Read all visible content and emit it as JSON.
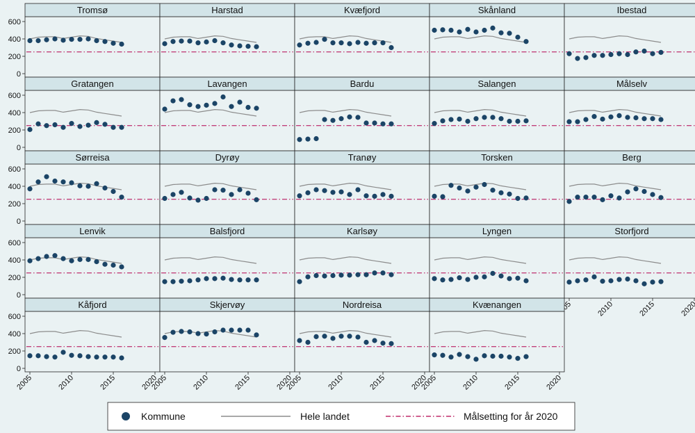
{
  "chart_data": {
    "type": "scatter",
    "layout": "small-multiples",
    "xlim": [
      2005,
      2020
    ],
    "ylim": [
      0,
      600
    ],
    "x_ticks": [
      2005,
      2010,
      2015,
      2020
    ],
    "y_ticks": [
      0,
      200,
      400,
      600
    ],
    "x": [
      2005,
      2006,
      2007,
      2008,
      2009,
      2010,
      2011,
      2012,
      2013,
      2014,
      2015,
      2016
    ],
    "national": [
      400,
      420,
      425,
      425,
      405,
      420,
      435,
      430,
      405,
      390,
      375,
      360
    ],
    "target_2020": 250,
    "legend": {
      "kommune": "Kommune",
      "national": "Hele landet",
      "target": "Målsetting for år 2020"
    },
    "colors": {
      "dot": "#1b4466",
      "national": "#8c8c8c",
      "target": "#b3004e",
      "panel_title_bg": "#d2e4e8",
      "background": "#eaf2f3"
    },
    "panels": [
      {
        "name": "Tromsø",
        "values": [
          380,
          380,
          390,
          400,
          385,
          395,
          395,
          400,
          380,
          370,
          350,
          340
        ]
      },
      {
        "name": "Harstad",
        "values": [
          345,
          370,
          375,
          375,
          355,
          365,
          380,
          355,
          330,
          320,
          315,
          310
        ]
      },
      {
        "name": "Kvæfjord",
        "values": [
          330,
          350,
          360,
          395,
          355,
          355,
          345,
          360,
          350,
          355,
          355,
          300
        ]
      },
      {
        "name": "Skånland",
        "values": [
          500,
          505,
          500,
          480,
          510,
          480,
          500,
          525,
          470,
          465,
          420,
          370
        ]
      },
      {
        "name": "Ibestad",
        "values": [
          230,
          175,
          185,
          210,
          210,
          220,
          230,
          220,
          250,
          260,
          230,
          245
        ]
      },
      {
        "name": "Gratangen",
        "values": [
          205,
          270,
          250,
          260,
          230,
          275,
          240,
          255,
          285,
          265,
          230,
          230
        ]
      },
      {
        "name": "Lavangen",
        "values": [
          440,
          535,
          550,
          490,
          470,
          485,
          505,
          580,
          470,
          520,
          460,
          450
        ]
      },
      {
        "name": "Bardu",
        "values": [
          90,
          95,
          100,
          320,
          310,
          330,
          350,
          345,
          280,
          280,
          270,
          270
        ]
      },
      {
        "name": "Salangen",
        "values": [
          275,
          305,
          320,
          325,
          300,
          330,
          345,
          345,
          330,
          300,
          300,
          305
        ]
      },
      {
        "name": "Målselv",
        "values": [
          295,
          295,
          320,
          355,
          325,
          350,
          365,
          345,
          340,
          330,
          330,
          320
        ]
      },
      {
        "name": "Sørreisa",
        "values": [
          370,
          450,
          510,
          460,
          450,
          440,
          405,
          400,
          430,
          380,
          340,
          275
        ]
      },
      {
        "name": "Dyrøy",
        "values": [
          260,
          305,
          330,
          265,
          240,
          260,
          360,
          355,
          305,
          360,
          320,
          245
        ]
      },
      {
        "name": "Tranøy",
        "values": [
          290,
          325,
          360,
          350,
          330,
          335,
          305,
          360,
          290,
          285,
          305,
          285
        ]
      },
      {
        "name": "Torsken",
        "values": [
          285,
          280,
          410,
          380,
          345,
          390,
          420,
          355,
          325,
          310,
          260,
          265
        ]
      },
      {
        "name": "Berg",
        "values": [
          225,
          275,
          275,
          275,
          245,
          290,
          265,
          335,
          370,
          340,
          305,
          270
        ]
      },
      {
        "name": "Lenvik",
        "values": [
          390,
          415,
          440,
          450,
          415,
          390,
          405,
          405,
          380,
          350,
          340,
          320
        ]
      },
      {
        "name": "Balsfjord",
        "values": [
          150,
          150,
          155,
          160,
          170,
          185,
          185,
          190,
          175,
          170,
          170,
          170
        ]
      },
      {
        "name": "Karlsøy",
        "values": [
          150,
          205,
          220,
          215,
          220,
          225,
          225,
          230,
          230,
          250,
          250,
          230
        ]
      },
      {
        "name": "Lyngen",
        "values": [
          185,
          170,
          175,
          195,
          175,
          200,
          205,
          245,
          215,
          185,
          190,
          160
        ]
      },
      {
        "name": "Storfjord",
        "values": [
          145,
          160,
          170,
          205,
          155,
          160,
          175,
          180,
          160,
          125,
          145,
          150
        ]
      },
      {
        "name": "Kåfjord",
        "values": [
          145,
          145,
          135,
          130,
          185,
          150,
          145,
          135,
          130,
          130,
          130,
          120
        ]
      },
      {
        "name": "Skjervøy",
        "values": [
          355,
          415,
          425,
          420,
          400,
          395,
          420,
          440,
          440,
          440,
          440,
          385
        ]
      },
      {
        "name": "Nordreisa",
        "values": [
          320,
          300,
          365,
          370,
          345,
          370,
          370,
          360,
          300,
          320,
          290,
          285
        ]
      },
      {
        "name": "Kvænangen",
        "values": [
          155,
          150,
          130,
          160,
          135,
          105,
          145,
          140,
          140,
          130,
          115,
          135
        ]
      }
    ]
  }
}
